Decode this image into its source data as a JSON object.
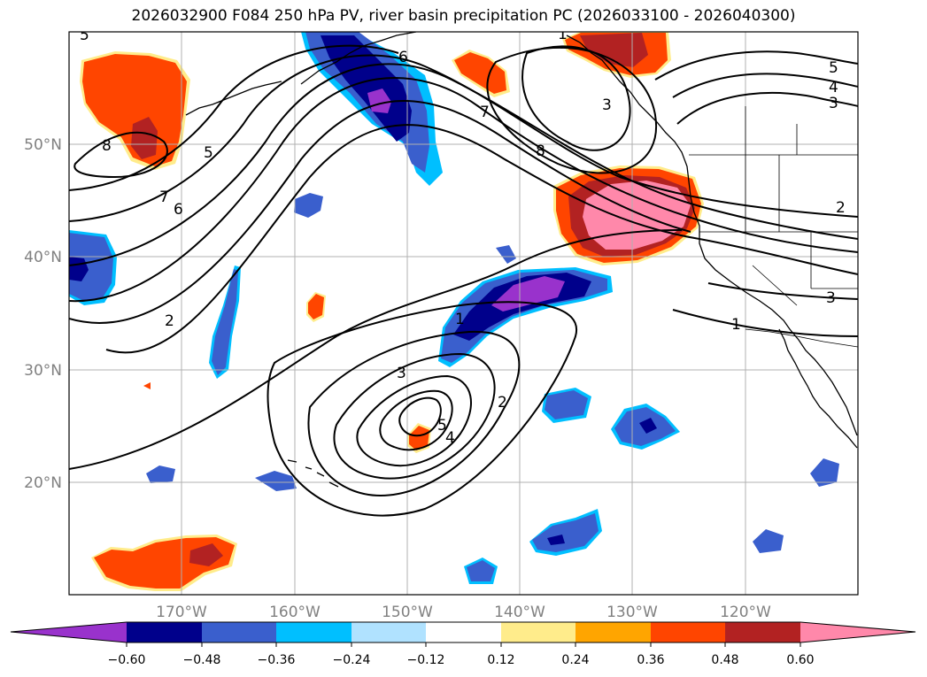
{
  "title": "2026032900 F084 250 hPa PV, river basin precipitation PC (2026033100 - 2026040300)",
  "map": {
    "lon_labels": [
      "170°W",
      "160°W",
      "150°W",
      "140°W",
      "130°W",
      "120°W"
    ],
    "lat_labels": [
      "50°N",
      "40°N",
      "30°N",
      "20°N"
    ]
  },
  "contour_labels": [
    "5",
    "8",
    "6",
    "5",
    "7",
    "6",
    "2",
    "1",
    "1",
    "7",
    "8",
    "3",
    "2",
    "3",
    "4",
    "5",
    "4",
    "5",
    "3",
    "1",
    "3",
    "2"
  ],
  "colorbar": {
    "ticks": [
      "−0.60",
      "−0.48",
      "−0.36",
      "−0.24",
      "−0.12",
      "0.12",
      "0.24",
      "0.36",
      "0.48",
      "0.60"
    ],
    "colors": [
      "#9932cc",
      "#00008b",
      "#3a5fcd",
      "#00bfff",
      "#b0e2ff",
      "#ffffff",
      "#ffec8b",
      "#ffa500",
      "#ff4500",
      "#b22222",
      "#ff88aa"
    ]
  }
}
